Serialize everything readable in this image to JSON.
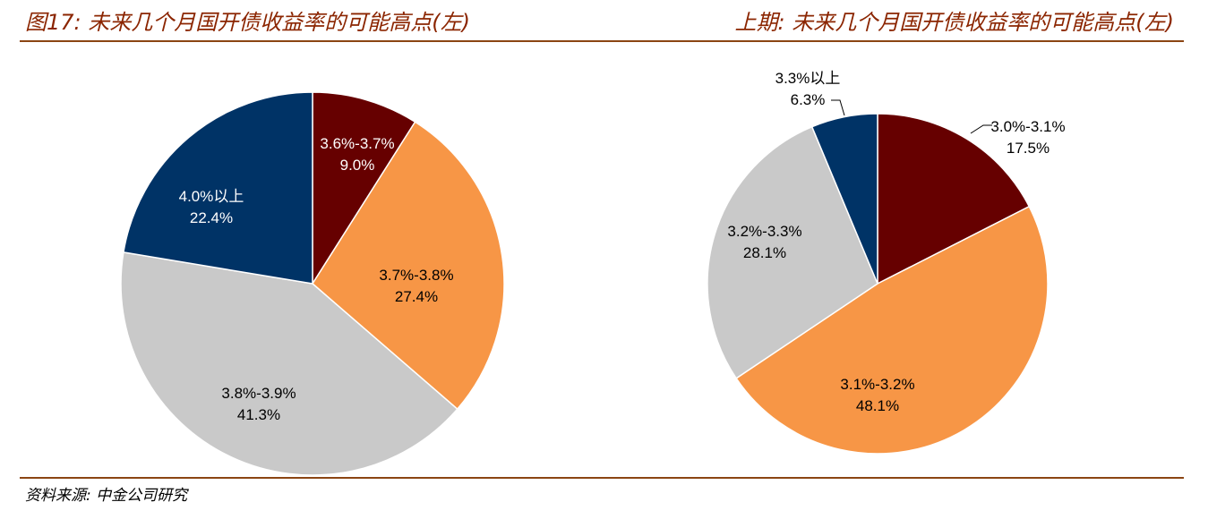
{
  "header": {
    "left_title": "图17:  未来几个月国开债收益率的可能高点(左)",
    "right_title": "上期:  未来几个月国开债收益率的可能高点(左)"
  },
  "footer": {
    "source": "资料来源:  中金公司研究"
  },
  "colors": {
    "dark_red": "#660000",
    "orange": "#f79646",
    "gray": "#c9c9c9",
    "navy": "#003366",
    "accent": "#8b2500"
  },
  "chart_data": [
    {
      "type": "pie",
      "title": "未来几个月国开债收益率的可能高点(左)",
      "slices": [
        {
          "label": "3.6%-3.7%",
          "value": 9.0,
          "value_label": "9.0%",
          "color": "#660000",
          "label_color": "#ffffff"
        },
        {
          "label": "3.7%-3.8%",
          "value": 27.4,
          "value_label": "27.4%",
          "color": "#f79646",
          "label_color": "#000000"
        },
        {
          "label": "3.8%-3.9%",
          "value": 41.3,
          "value_label": "41.3%",
          "color": "#c9c9c9",
          "label_color": "#000000"
        },
        {
          "label": "4.0%以上",
          "value": 22.4,
          "value_label": "22.4%",
          "color": "#003366",
          "label_color": "#ffffff"
        }
      ]
    },
    {
      "type": "pie",
      "title": "上期: 未来几个月国开债收益率的可能高点(左)",
      "slices": [
        {
          "label": "3.0%-3.1%",
          "value": 17.5,
          "value_label": "17.5%",
          "color": "#660000",
          "label_color": "#000000"
        },
        {
          "label": "3.1%-3.2%",
          "value": 48.1,
          "value_label": "48.1%",
          "color": "#f79646",
          "label_color": "#000000"
        },
        {
          "label": "3.2%-3.3%",
          "value": 28.1,
          "value_label": "28.1%",
          "color": "#c9c9c9",
          "label_color": "#000000"
        },
        {
          "label": "3.3%以上",
          "value": 6.3,
          "value_label": "6.3%",
          "color": "#003366",
          "label_color": "#000000"
        }
      ]
    }
  ]
}
